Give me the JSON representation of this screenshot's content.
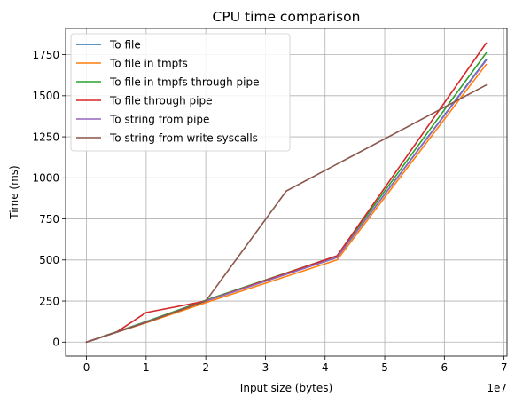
{
  "chart_data": {
    "type": "line",
    "title": "CPU time comparison",
    "xlabel": "Input size (bytes)",
    "ylabel": "Time (ms)",
    "x_scale_note": "1e7",
    "xlim": [
      -0.35,
      7.05
    ],
    "ylim": [
      -85,
      1910
    ],
    "xticks": [
      0,
      1,
      2,
      3,
      4,
      5,
      6,
      7
    ],
    "yticks": [
      0,
      250,
      500,
      750,
      1000,
      1250,
      1500,
      1750
    ],
    "grid": true,
    "legend_position": "top-left",
    "series": [
      {
        "name": "To file",
        "color": "#1f77b4",
        "x": [
          0,
          0.1,
          0.25,
          0.5,
          1,
          2,
          4.2,
          6.7
        ],
        "y": [
          0,
          12,
          30,
          60,
          120,
          250,
          515,
          1720
        ]
      },
      {
        "name": "To file in tmpfs",
        "color": "#ff7f0e",
        "x": [
          0,
          0.1,
          0.25,
          0.5,
          1,
          2,
          4.2,
          6.7
        ],
        "y": [
          0,
          12,
          30,
          60,
          117,
          240,
          500,
          1690
        ]
      },
      {
        "name": "To file in tmpfs through pipe",
        "color": "#2ca02c",
        "x": [
          0,
          0.1,
          0.25,
          0.5,
          1,
          2,
          4.2,
          6.7
        ],
        "y": [
          0,
          12,
          32,
          62,
          125,
          255,
          525,
          1760
        ]
      },
      {
        "name": "To file through pipe",
        "color": "#d62728",
        "x": [
          0,
          0.1,
          0.25,
          0.5,
          1,
          2,
          4.2,
          6.7
        ],
        "y": [
          0,
          12,
          30,
          60,
          180,
          250,
          525,
          1820
        ]
      },
      {
        "name": "To string from pipe",
        "color": "#9467bd",
        "x": [
          0,
          0.1,
          0.25,
          0.5,
          1,
          2,
          4.2,
          6.7
        ],
        "y": [
          0,
          12,
          30,
          60,
          122,
          250,
          515,
          1715
        ]
      },
      {
        "name": "To string from write syscalls",
        "color": "#8c564b",
        "x": [
          0,
          0.1,
          0.25,
          0.5,
          1,
          2,
          3.35,
          6.7
        ],
        "y": [
          0,
          12,
          30,
          60,
          120,
          250,
          920,
          1565
        ]
      }
    ]
  }
}
